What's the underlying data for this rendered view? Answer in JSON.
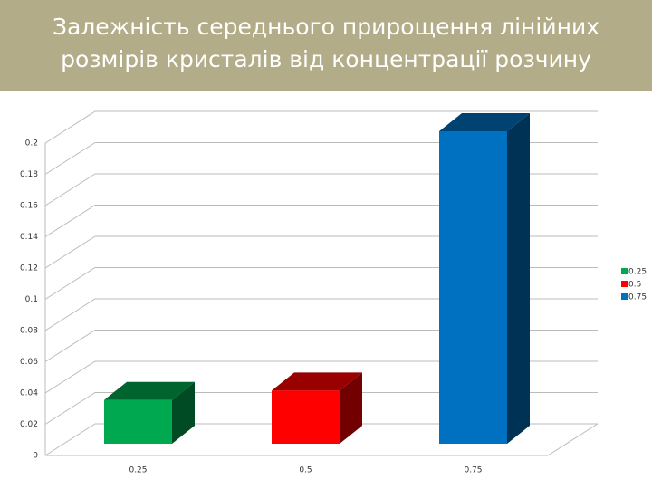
{
  "chart_data": {
    "type": "bar3d",
    "title": "Залежність середнього прирощення лінійних розмірів кристалів від концентрації розчину",
    "categories": [
      "0.25",
      "0.5",
      "0.75"
    ],
    "values": [
      0.028,
      0.034,
      0.2
    ],
    "colors": [
      "#00a84f",
      "#ff0000",
      "#0070c0"
    ],
    "ylim": [
      0,
      0.2
    ],
    "yticks": [
      0,
      0.02,
      0.04,
      0.06,
      0.08,
      0.1,
      0.12,
      0.14,
      0.16,
      0.18,
      0.2
    ],
    "grid": true,
    "legend": "right"
  }
}
